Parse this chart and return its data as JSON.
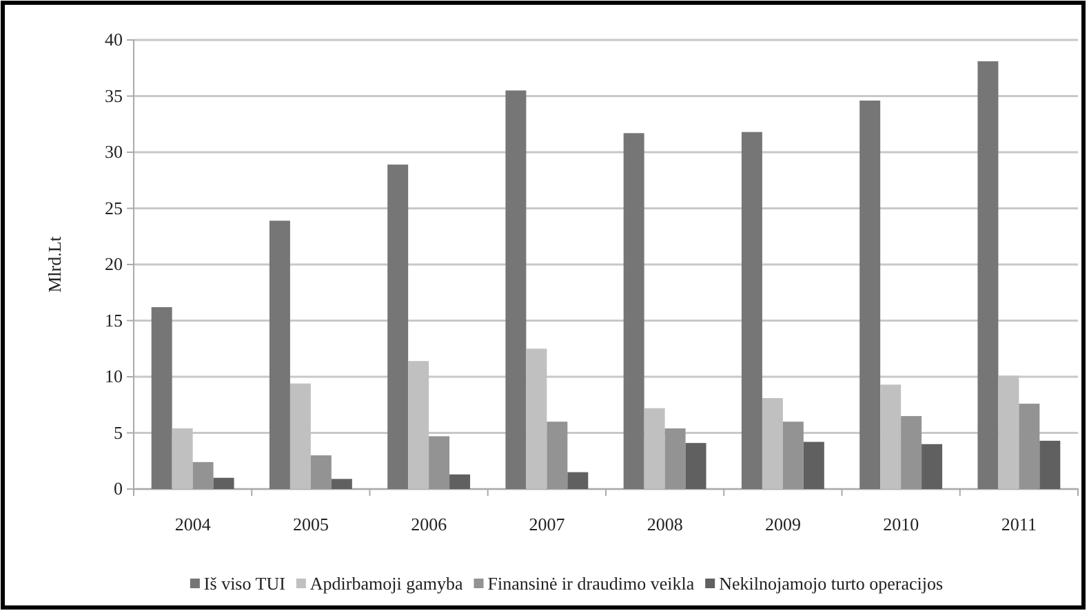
{
  "chart_data": {
    "type": "bar",
    "ylabel": "Mlrd.Lt",
    "categories": [
      "2004",
      "2005",
      "2006",
      "2007",
      "2008",
      "2009",
      "2010",
      "2011"
    ],
    "series": [
      {
        "name": "Iš viso TUI",
        "color": "#767676",
        "values": [
          16.2,
          23.9,
          28.9,
          35.5,
          31.7,
          31.8,
          34.6,
          38.1
        ]
      },
      {
        "name": "Apdirbamoji gamyba",
        "color": "#c0c0c0",
        "values": [
          5.4,
          9.4,
          11.4,
          12.5,
          7.2,
          8.1,
          9.3,
          10.1
        ]
      },
      {
        "name": "Finansinė ir draudimo veikla",
        "color": "#939393",
        "values": [
          2.4,
          3.0,
          4.7,
          6.0,
          5.4,
          6.0,
          6.5,
          7.6
        ]
      },
      {
        "name": "Nekilnojamojo turto operacijos",
        "color": "#606060",
        "values": [
          1.0,
          0.9,
          1.3,
          1.5,
          4.1,
          4.2,
          4.0,
          4.3
        ]
      }
    ],
    "ylim": [
      0,
      40
    ],
    "yticks": [
      0,
      5,
      10,
      15,
      20,
      25,
      30,
      35,
      40
    ],
    "grid": "y",
    "legend": "bottom"
  }
}
